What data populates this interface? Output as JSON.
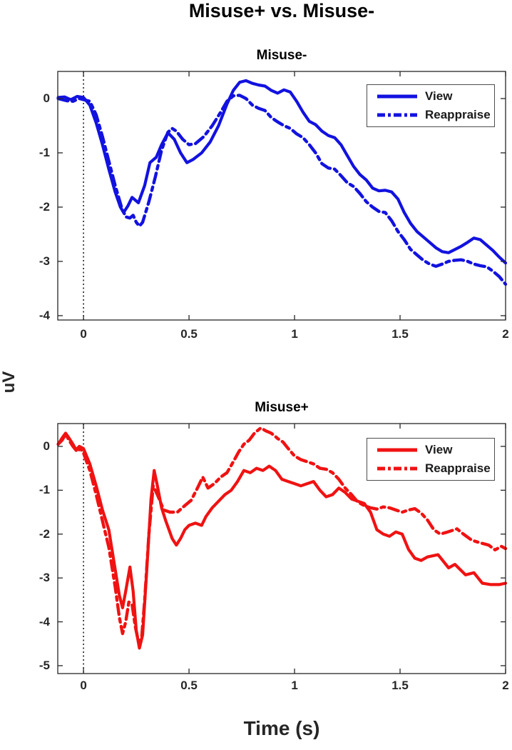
{
  "figure": {
    "title": "Misuse+ vs. Misuse-",
    "xlabel": "Time (s)",
    "ylabel": "uV"
  },
  "chart_data": [
    {
      "type": "line",
      "key": "misuse-minus",
      "title": "Misuse-",
      "xlim": [
        -0.122,
        2
      ],
      "ylim": [
        -4.08,
        0.5
      ],
      "xticks": [
        0,
        0.5,
        1,
        1.5,
        2
      ],
      "xtick_labels": [
        "0",
        "0.5",
        "1",
        "1.5",
        "2"
      ],
      "yticks": [
        0,
        -1,
        -2,
        -3,
        -4
      ],
      "ytick_labels": [
        "0",
        "-1",
        "-2",
        "-3",
        "-4"
      ],
      "grid": false,
      "event_line_x": 0,
      "legend_position": "top-right",
      "legend_entries": [
        "View",
        "Reappraise"
      ],
      "series": [
        {
          "name": "View",
          "style": "solid",
          "color": "#1212e0",
          "x": [
            -0.12,
            -0.09,
            -0.06,
            -0.03,
            0,
            0.03,
            0.06,
            0.09,
            0.12,
            0.15,
            0.175,
            0.19,
            0.21,
            0.23,
            0.26,
            0.29,
            0.315,
            0.345,
            0.37,
            0.4,
            0.43,
            0.46,
            0.49,
            0.52,
            0.56,
            0.6,
            0.64,
            0.68,
            0.71,
            0.74,
            0.77,
            0.8,
            0.83,
            0.86,
            0.89,
            0.92,
            0.95,
            0.98,
            1.01,
            1.04,
            1.07,
            1.1,
            1.13,
            1.16,
            1.19,
            1.22,
            1.25,
            1.28,
            1.31,
            1.34,
            1.37,
            1.4,
            1.43,
            1.46,
            1.49,
            1.52,
            1.55,
            1.58,
            1.61,
            1.64,
            1.67,
            1.7,
            1.73,
            1.76,
            1.79,
            1.82,
            1.85,
            1.88,
            1.91,
            1.94,
            1.97,
            2.0
          ],
          "y": [
            0.02,
            0.03,
            -0.02,
            0.04,
            0.02,
            -0.12,
            -0.45,
            -0.85,
            -1.3,
            -1.72,
            -2.0,
            -2.1,
            -1.98,
            -1.82,
            -1.92,
            -1.6,
            -1.18,
            -1.08,
            -0.85,
            -0.63,
            -0.75,
            -1.0,
            -1.18,
            -1.12,
            -1.0,
            -0.8,
            -0.5,
            -0.1,
            0.15,
            0.3,
            0.33,
            0.28,
            0.25,
            0.23,
            0.15,
            0.1,
            0.16,
            0.12,
            -0.05,
            -0.25,
            -0.42,
            -0.48,
            -0.6,
            -0.68,
            -0.72,
            -0.85,
            -1.05,
            -1.25,
            -1.4,
            -1.5,
            -1.65,
            -1.7,
            -1.69,
            -1.72,
            -1.85,
            -2.1,
            -2.3,
            -2.45,
            -2.55,
            -2.65,
            -2.75,
            -2.82,
            -2.84,
            -2.78,
            -2.72,
            -2.65,
            -2.57,
            -2.6,
            -2.7,
            -2.8,
            -2.92,
            -3.03
          ]
        },
        {
          "name": "Reappraise",
          "style": "dashdot",
          "color": "#1212e0",
          "x": [
            -0.12,
            -0.08,
            -0.05,
            -0.02,
            0,
            0.03,
            0.06,
            0.09,
            0.12,
            0.15,
            0.18,
            0.2,
            0.22,
            0.235,
            0.25,
            0.265,
            0.28,
            0.31,
            0.34,
            0.37,
            0.4,
            0.42,
            0.44,
            0.47,
            0.5,
            0.53,
            0.57,
            0.61,
            0.65,
            0.68,
            0.71,
            0.74,
            0.77,
            0.8,
            0.83,
            0.86,
            0.89,
            0.92,
            0.95,
            0.98,
            1.01,
            1.04,
            1.07,
            1.1,
            1.13,
            1.16,
            1.19,
            1.22,
            1.25,
            1.28,
            1.31,
            1.34,
            1.37,
            1.4,
            1.43,
            1.46,
            1.49,
            1.52,
            1.55,
            1.58,
            1.61,
            1.64,
            1.67,
            1.7,
            1.73,
            1.76,
            1.79,
            1.82,
            1.85,
            1.88,
            1.91,
            1.94,
            1.97,
            2.0
          ],
          "y": [
            0.0,
            -0.04,
            -0.05,
            0.0,
            -0.02,
            -0.05,
            -0.3,
            -0.7,
            -1.15,
            -1.6,
            -2.0,
            -2.18,
            -2.2,
            -2.15,
            -2.28,
            -2.35,
            -2.28,
            -1.9,
            -1.45,
            -0.95,
            -0.62,
            -0.55,
            -0.6,
            -0.75,
            -0.85,
            -0.83,
            -0.7,
            -0.5,
            -0.25,
            -0.05,
            0.05,
            0.06,
            0.0,
            -0.12,
            -0.18,
            -0.22,
            -0.35,
            -0.43,
            -0.5,
            -0.55,
            -0.65,
            -0.72,
            -0.85,
            -1.0,
            -1.2,
            -1.28,
            -1.3,
            -1.42,
            -1.55,
            -1.62,
            -1.75,
            -1.9,
            -2.0,
            -2.08,
            -2.1,
            -2.25,
            -2.45,
            -2.6,
            -2.78,
            -2.88,
            -2.98,
            -3.05,
            -3.09,
            -3.05,
            -3.0,
            -2.98,
            -2.97,
            -3.0,
            -3.05,
            -3.08,
            -3.1,
            -3.18,
            -3.28,
            -3.42
          ]
        }
      ]
    },
    {
      "type": "line",
      "key": "misuse-plus",
      "title": "Misuse+",
      "xlim": [
        -0.122,
        2
      ],
      "ylim": [
        -5.18,
        0.52
      ],
      "xticks": [
        0,
        0.5,
        1,
        1.5,
        2
      ],
      "xtick_labels": [
        "0",
        "0.5",
        "1",
        "1.5",
        "2"
      ],
      "yticks": [
        0,
        -1,
        -2,
        -3,
        -4,
        -5
      ],
      "ytick_labels": [
        "0",
        "-1",
        "-2",
        "-3",
        "-4",
        "-5"
      ],
      "grid": false,
      "event_line_x": 0,
      "legend_position": "top-right",
      "legend_entries": [
        "View",
        "Reappraise"
      ],
      "series": [
        {
          "name": "View",
          "style": "solid",
          "color": "#f01212",
          "x": [
            -0.12,
            -0.1,
            -0.085,
            -0.07,
            -0.05,
            -0.035,
            -0.02,
            0,
            0.03,
            0.06,
            0.09,
            0.12,
            0.15,
            0.17,
            0.185,
            0.2,
            0.22,
            0.235,
            0.25,
            0.265,
            0.28,
            0.3,
            0.32,
            0.335,
            0.35,
            0.37,
            0.39,
            0.42,
            0.44,
            0.46,
            0.48,
            0.5,
            0.53,
            0.56,
            0.58,
            0.61,
            0.64,
            0.67,
            0.7,
            0.73,
            0.76,
            0.79,
            0.82,
            0.85,
            0.88,
            0.91,
            0.94,
            0.97,
            1.0,
            1.03,
            1.06,
            1.09,
            1.12,
            1.15,
            1.18,
            1.21,
            1.24,
            1.27,
            1.3,
            1.33,
            1.36,
            1.39,
            1.42,
            1.45,
            1.48,
            1.51,
            1.54,
            1.57,
            1.6,
            1.63,
            1.68,
            1.73,
            1.76,
            1.81,
            1.85,
            1.89,
            1.93,
            1.97,
            2.0
          ],
          "y": [
            0.05,
            0.2,
            0.3,
            0.2,
            0.05,
            -0.08,
            0.0,
            -0.05,
            -0.4,
            -0.9,
            -1.45,
            -1.9,
            -2.8,
            -3.4,
            -3.68,
            -3.3,
            -2.75,
            -3.3,
            -4.2,
            -4.6,
            -4.3,
            -2.8,
            -1.2,
            -0.55,
            -0.9,
            -1.4,
            -1.7,
            -2.1,
            -2.25,
            -2.1,
            -1.9,
            -1.8,
            -1.75,
            -1.8,
            -1.6,
            -1.4,
            -1.25,
            -1.1,
            -1.0,
            -0.8,
            -0.55,
            -0.6,
            -0.5,
            -0.55,
            -0.45,
            -0.55,
            -0.75,
            -0.8,
            -0.85,
            -0.9,
            -0.85,
            -0.8,
            -1.0,
            -1.15,
            -1.1,
            -0.95,
            -1.05,
            -1.2,
            -1.25,
            -1.3,
            -1.5,
            -1.9,
            -2.0,
            -2.05,
            -1.95,
            -2.0,
            -2.35,
            -2.55,
            -2.6,
            -2.52,
            -2.47,
            -2.77,
            -2.69,
            -2.93,
            -2.88,
            -3.12,
            -3.15,
            -3.15,
            -3.12
          ]
        },
        {
          "name": "Reappraise",
          "style": "dashdot",
          "color": "#f01212",
          "x": [
            -0.12,
            -0.1,
            -0.085,
            -0.07,
            -0.05,
            -0.03,
            -0.015,
            0,
            0.03,
            0.06,
            0.09,
            0.12,
            0.15,
            0.17,
            0.185,
            0.2,
            0.215,
            0.23,
            0.245,
            0.26,
            0.275,
            0.29,
            0.31,
            0.33,
            0.35,
            0.38,
            0.41,
            0.445,
            0.48,
            0.51,
            0.54,
            0.565,
            0.59,
            0.62,
            0.65,
            0.68,
            0.71,
            0.735,
            0.76,
            0.785,
            0.81,
            0.84,
            0.865,
            0.89,
            0.92,
            0.945,
            0.97,
            1.0,
            1.03,
            1.06,
            1.09,
            1.12,
            1.15,
            1.18,
            1.21,
            1.24,
            1.27,
            1.3,
            1.33,
            1.36,
            1.39,
            1.42,
            1.45,
            1.48,
            1.51,
            1.54,
            1.57,
            1.6,
            1.63,
            1.66,
            1.69,
            1.72,
            1.77,
            1.8,
            1.84,
            1.88,
            1.92,
            1.95,
            1.98,
            2.0
          ],
          "y": [
            0.05,
            0.15,
            0.28,
            0.15,
            0.0,
            -0.12,
            -0.05,
            -0.15,
            -0.55,
            -1.1,
            -1.7,
            -2.3,
            -3.2,
            -3.9,
            -4.27,
            -4.0,
            -3.55,
            -3.6,
            -4.1,
            -4.45,
            -4.4,
            -3.5,
            -2.0,
            -0.9,
            -1.1,
            -1.45,
            -1.5,
            -1.5,
            -1.35,
            -1.23,
            -0.95,
            -0.7,
            -0.95,
            -0.85,
            -0.7,
            -0.6,
            -0.35,
            -0.13,
            0.05,
            0.14,
            0.3,
            0.42,
            0.35,
            0.3,
            0.18,
            0.1,
            -0.05,
            -0.22,
            -0.3,
            -0.35,
            -0.4,
            -0.5,
            -0.52,
            -0.6,
            -0.75,
            -0.95,
            -1.1,
            -1.27,
            -1.35,
            -1.4,
            -1.43,
            -1.38,
            -1.4,
            -1.45,
            -1.5,
            -1.45,
            -1.42,
            -1.52,
            -1.68,
            -1.9,
            -2.0,
            -1.96,
            -1.88,
            -2.0,
            -2.14,
            -2.2,
            -2.25,
            -2.36,
            -2.28,
            -2.33
          ]
        }
      ]
    }
  ]
}
